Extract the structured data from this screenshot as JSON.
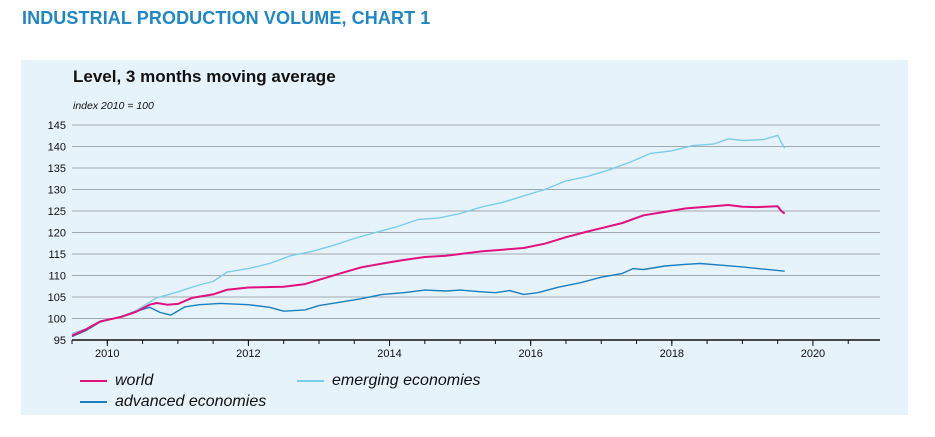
{
  "page": {
    "heading": "INDUSTRIAL PRODUCTION VOLUME, CHART 1"
  },
  "colors": {
    "panel": "#e6f3fb",
    "heading": "#1f87c6",
    "grid": "#8a8f94",
    "axis": "#111111"
  },
  "chart_data": {
    "type": "line",
    "title": "Level, 3 months moving average",
    "ylabel": "index 2010 = 100",
    "xlabel": "",
    "xlim": [
      2009.5,
      2020.95
    ],
    "ylim": [
      95,
      145
    ],
    "yticks": [
      95,
      100,
      105,
      110,
      115,
      120,
      125,
      130,
      135,
      140,
      145
    ],
    "xticks": [
      2010,
      2012,
      2014,
      2016,
      2018,
      2020
    ],
    "grid": "horizontal",
    "legend_position": "bottom",
    "series": [
      {
        "name": "world",
        "color": "#e0117f",
        "points": [
          [
            2009.5,
            96
          ],
          [
            2009.7,
            97.5
          ],
          [
            2009.9,
            99.3
          ],
          [
            2010.2,
            100.4
          ],
          [
            2010.4,
            101.5
          ],
          [
            2010.6,
            103.2
          ],
          [
            2010.7,
            103.6
          ],
          [
            2010.85,
            103.2
          ],
          [
            2011.0,
            103.4
          ],
          [
            2011.2,
            104.8
          ],
          [
            2011.5,
            105.6
          ],
          [
            2011.7,
            106.7
          ],
          [
            2012.0,
            107.2
          ],
          [
            2012.5,
            107.4
          ],
          [
            2012.8,
            108.0
          ],
          [
            2013.0,
            109.0
          ],
          [
            2013.3,
            110.5
          ],
          [
            2013.6,
            111.9
          ],
          [
            2013.9,
            112.8
          ],
          [
            2014.2,
            113.6
          ],
          [
            2014.5,
            114.3
          ],
          [
            2014.8,
            114.6
          ],
          [
            2015.0,
            115.0
          ],
          [
            2015.3,
            115.6
          ],
          [
            2015.6,
            116.0
          ],
          [
            2015.9,
            116.4
          ],
          [
            2016.2,
            117.4
          ],
          [
            2016.5,
            118.9
          ],
          [
            2016.8,
            120.2
          ],
          [
            2017.0,
            121.0
          ],
          [
            2017.3,
            122.2
          ],
          [
            2017.6,
            124.0
          ],
          [
            2017.9,
            124.8
          ],
          [
            2018.2,
            125.6
          ],
          [
            2018.5,
            126.0
          ],
          [
            2018.8,
            126.4
          ],
          [
            2019.0,
            126.0
          ],
          [
            2019.2,
            125.9
          ],
          [
            2019.5,
            126.1
          ],
          [
            2019.55,
            125.0
          ],
          [
            2019.6,
            124.4
          ]
        ]
      },
      {
        "name": "advanced economies",
        "color": "#1a7fbf",
        "points": [
          [
            2009.5,
            95.8
          ],
          [
            2009.7,
            97.2
          ],
          [
            2009.9,
            99.2
          ],
          [
            2010.2,
            100.5
          ],
          [
            2010.4,
            101.6
          ],
          [
            2010.6,
            102.6
          ],
          [
            2010.75,
            101.4
          ],
          [
            2010.9,
            100.8
          ],
          [
            2011.1,
            102.7
          ],
          [
            2011.3,
            103.2
          ],
          [
            2011.6,
            103.5
          ],
          [
            2012.0,
            103.2
          ],
          [
            2012.3,
            102.6
          ],
          [
            2012.5,
            101.7
          ],
          [
            2012.8,
            102.0
          ],
          [
            2013.0,
            103.0
          ],
          [
            2013.3,
            103.8
          ],
          [
            2013.6,
            104.6
          ],
          [
            2013.9,
            105.6
          ],
          [
            2014.2,
            106.0
          ],
          [
            2014.5,
            106.6
          ],
          [
            2014.8,
            106.4
          ],
          [
            2015.0,
            106.6
          ],
          [
            2015.3,
            106.2
          ],
          [
            2015.5,
            106.0
          ],
          [
            2015.7,
            106.5
          ],
          [
            2015.9,
            105.6
          ],
          [
            2016.1,
            106.0
          ],
          [
            2016.4,
            107.3
          ],
          [
            2016.7,
            108.3
          ],
          [
            2017.0,
            109.6
          ],
          [
            2017.3,
            110.5
          ],
          [
            2017.45,
            111.6
          ],
          [
            2017.6,
            111.4
          ],
          [
            2017.9,
            112.2
          ],
          [
            2018.2,
            112.6
          ],
          [
            2018.4,
            112.8
          ],
          [
            2018.7,
            112.4
          ],
          [
            2019.0,
            112.0
          ],
          [
            2019.3,
            111.5
          ],
          [
            2019.6,
            111.0
          ]
        ]
      },
      {
        "name": "emerging economies",
        "color": "#7dcdea",
        "points": [
          [
            2009.5,
            96.5
          ],
          [
            2009.7,
            97.6
          ],
          [
            2009.9,
            99.4
          ],
          [
            2010.2,
            100.3
          ],
          [
            2010.4,
            101.8
          ],
          [
            2010.7,
            104.8
          ],
          [
            2011.0,
            106.2
          ],
          [
            2011.3,
            107.8
          ],
          [
            2011.5,
            108.6
          ],
          [
            2011.7,
            110.8
          ],
          [
            2012.0,
            111.6
          ],
          [
            2012.3,
            112.8
          ],
          [
            2012.6,
            114.6
          ],
          [
            2012.9,
            115.6
          ],
          [
            2013.2,
            117.0
          ],
          [
            2013.5,
            118.6
          ],
          [
            2013.8,
            120.0
          ],
          [
            2014.1,
            121.3
          ],
          [
            2014.4,
            123.0
          ],
          [
            2014.7,
            123.4
          ],
          [
            2015.0,
            124.4
          ],
          [
            2015.3,
            125.9
          ],
          [
            2015.6,
            127.0
          ],
          [
            2015.9,
            128.5
          ],
          [
            2016.2,
            130.0
          ],
          [
            2016.5,
            132.0
          ],
          [
            2016.8,
            133.0
          ],
          [
            2017.1,
            134.5
          ],
          [
            2017.4,
            136.3
          ],
          [
            2017.7,
            138.4
          ],
          [
            2018.0,
            139.0
          ],
          [
            2018.3,
            140.2
          ],
          [
            2018.6,
            140.6
          ],
          [
            2018.8,
            141.8
          ],
          [
            2019.0,
            141.4
          ],
          [
            2019.3,
            141.6
          ],
          [
            2019.5,
            142.6
          ],
          [
            2019.55,
            141.0
          ],
          [
            2019.6,
            139.6
          ]
        ]
      }
    ]
  }
}
